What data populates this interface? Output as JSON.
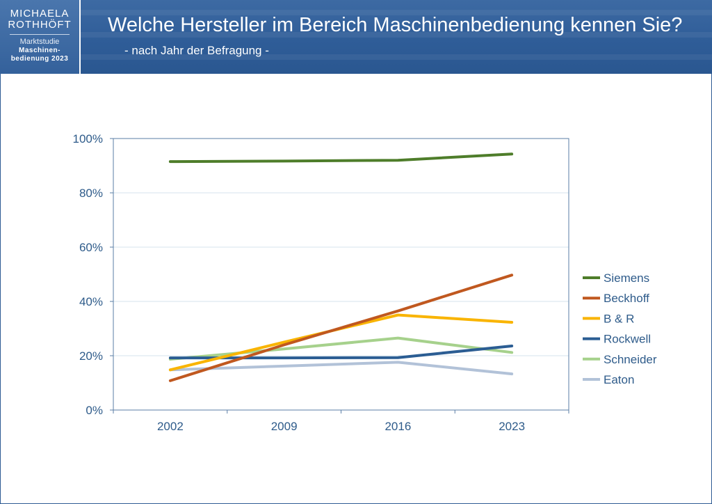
{
  "header": {
    "logo_line1": "MICHAELA",
    "logo_line2": "ROTHHÖFT",
    "logo_sub1": "Marktstudie",
    "logo_sub2a": "Maschinen-",
    "logo_sub2b": "bedienung 2023",
    "title": "Welche Hersteller im Bereich Maschinenbedienung kennen Sie?",
    "subtitle": "- nach Jahr der Befragung -"
  },
  "colors": {
    "header_bg": "#2f5d98",
    "axis_text": "#2e5b8a",
    "frame": "#2e5b93"
  },
  "chart_data": {
    "type": "line",
    "title": "",
    "xlabel": "",
    "ylabel": "",
    "categories": [
      "2002",
      "2009",
      "2016",
      "2023"
    ],
    "ylim": [
      0,
      100
    ],
    "yticks": [
      "0%",
      "20%",
      "40%",
      "60%",
      "80%",
      "100%"
    ],
    "y_unit": "%",
    "grid": true,
    "legend": "right",
    "series": [
      {
        "name": "Siemens",
        "color": "#4e7d2a",
        "values": [
          91.5,
          91.7,
          92.0,
          94.3
        ]
      },
      {
        "name": "Beckhoff",
        "color": "#c0581f",
        "values": [
          10.8,
          24.0,
          36.5,
          49.7
        ]
      },
      {
        "name": "B & R",
        "color": "#f9b400",
        "values": [
          14.8,
          25.0,
          35.0,
          32.3
        ]
      },
      {
        "name": "Rockwell",
        "color": "#2b5d93",
        "values": [
          19.2,
          19.2,
          19.3,
          23.6
        ]
      },
      {
        "name": "Schneider",
        "color": "#a6d18c",
        "values": [
          18.7,
          22.5,
          26.5,
          21.2
        ]
      },
      {
        "name": "Eaton",
        "color": "#b2c2d8",
        "values": [
          14.8,
          16.2,
          17.6,
          13.3
        ]
      }
    ]
  }
}
